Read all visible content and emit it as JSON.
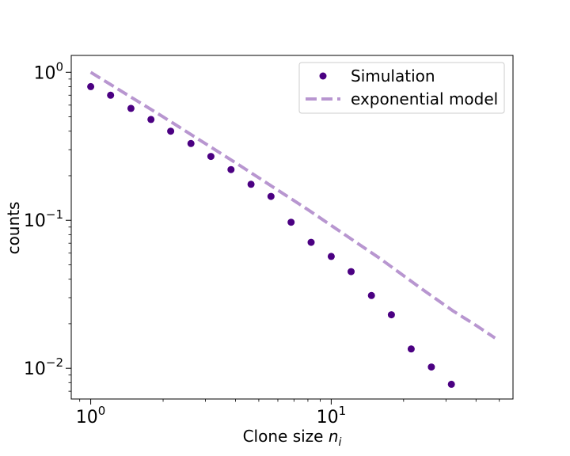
{
  "chart_data": {
    "type": "scatter",
    "xscale": "log",
    "yscale": "log",
    "xlim": [
      0.83,
      57
    ],
    "ylim": [
      0.0062,
      1.3
    ],
    "xlabel_main": "Clone size ",
    "xlabel_var": "n",
    "xlabel_sub": "i",
    "ylabel": "counts",
    "x_ticks": [
      {
        "value": 1,
        "base": "10",
        "exp": "0"
      },
      {
        "value": 10,
        "base": "10",
        "exp": "1"
      }
    ],
    "y_ticks": [
      {
        "value": 1,
        "base": "10",
        "exp": "0"
      },
      {
        "value": 0.1,
        "base": "10",
        "exp": "−1"
      },
      {
        "value": 0.01,
        "base": "10",
        "exp": "−2"
      }
    ],
    "grid": false,
    "legend_position": "top-right",
    "series": [
      {
        "name": "Simulation",
        "kind": "markers",
        "color": "#4b0082",
        "points": [
          {
            "x": 1.0,
            "y": 0.8
          },
          {
            "x": 1.21,
            "y": 0.7
          },
          {
            "x": 1.47,
            "y": 0.57
          },
          {
            "x": 1.78,
            "y": 0.48
          },
          {
            "x": 2.15,
            "y": 0.4
          },
          {
            "x": 2.61,
            "y": 0.33
          },
          {
            "x": 3.16,
            "y": 0.27
          },
          {
            "x": 3.83,
            "y": 0.22
          },
          {
            "x": 4.64,
            "y": 0.175
          },
          {
            "x": 5.62,
            "y": 0.145
          },
          {
            "x": 6.81,
            "y": 0.097
          },
          {
            "x": 8.25,
            "y": 0.071
          },
          {
            "x": 10.0,
            "y": 0.057
          },
          {
            "x": 12.1,
            "y": 0.045
          },
          {
            "x": 14.7,
            "y": 0.031
          },
          {
            "x": 17.8,
            "y": 0.023
          },
          {
            "x": 21.5,
            "y": 0.0135
          },
          {
            "x": 26.1,
            "y": 0.0102
          },
          {
            "x": 31.6,
            "y": 0.0078
          }
        ]
      },
      {
        "name": "exponential model",
        "kind": "dashed-line",
        "color": "#b896d0",
        "points": [
          {
            "x": 1.0,
            "y": 1.0
          },
          {
            "x": 2.0,
            "y": 0.5
          },
          {
            "x": 4.0,
            "y": 0.245
          },
          {
            "x": 8.0,
            "y": 0.118
          },
          {
            "x": 16.0,
            "y": 0.055
          },
          {
            "x": 24.0,
            "y": 0.034
          },
          {
            "x": 32.0,
            "y": 0.0245
          },
          {
            "x": 40.0,
            "y": 0.0195
          },
          {
            "x": 48.0,
            "y": 0.016
          }
        ]
      }
    ]
  }
}
